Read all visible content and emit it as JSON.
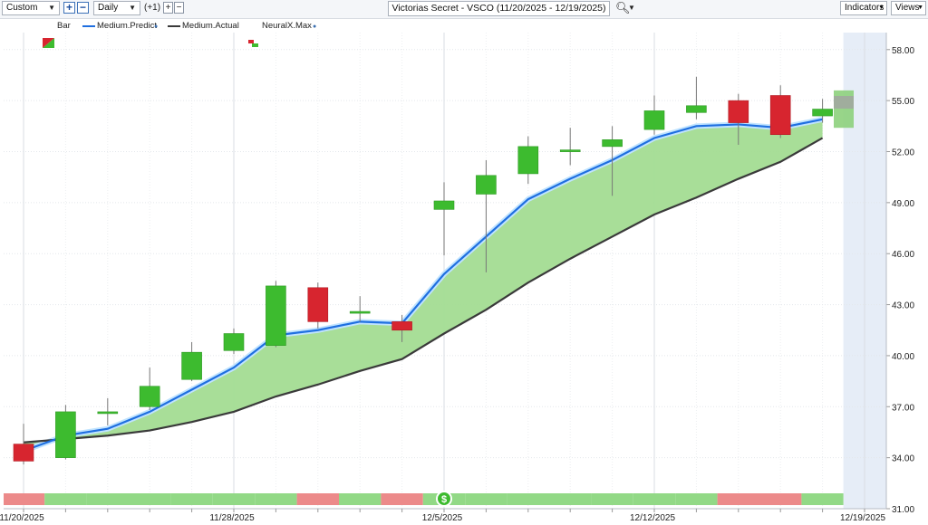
{
  "toolbar": {
    "period_select": "Custom",
    "zoom_in_icon": "plus-icon",
    "zoom_out_icon": "minus-icon",
    "interval_select": "Daily",
    "offset_label": "(+1)",
    "title": "Victorias Secret - VSCO (11/20/2025 - 12/19/2025)",
    "search_icon": "magnifier-icon",
    "indicators_label": "Indicators",
    "views_label": "Views"
  },
  "legend": [
    {
      "name": "Bar",
      "icon": "bar-icon"
    },
    {
      "name": "Medium.Predict",
      "color": "#1f6fe0"
    },
    {
      "name": "Medium.Actual",
      "color": "#3a3a3a"
    },
    {
      "name": "NeuralX.Max",
      "icon": "neuralx-icon"
    }
  ],
  "colors": {
    "up": "#3dbb2f",
    "down": "#d7252f",
    "fill": "#a3dc92",
    "predict": "#1f6fe0",
    "actual": "#3a3a3a",
    "strip_up": "#92d986",
    "strip_down": "#ec8a8a",
    "forecast_bg": "#e6edf7"
  },
  "chart_data": {
    "type": "candlestick",
    "title": "Victorias Secret - VSCO (11/20/2025 - 12/19/2025)",
    "ylim": [
      31,
      59
    ],
    "y_ticks": [
      "58.00",
      "55.00",
      "52.00",
      "49.00",
      "46.00",
      "43.00",
      "40.00",
      "37.00",
      "34.00",
      "31.00"
    ],
    "x_tick_labels": [
      {
        "label": "11/20/2025",
        "index": 0
      },
      {
        "label": "11/28/2025",
        "index": 5
      },
      {
        "label": "12/5/2025",
        "index": 10
      },
      {
        "label": "12/12/2025",
        "index": 15
      },
      {
        "label": "12/19/2025",
        "index": 20
      }
    ],
    "dates": [
      "11/20/2025",
      "11/21/2025",
      "11/24/2025",
      "11/25/2025",
      "11/26/2025",
      "11/28/2025",
      "12/1/2025",
      "12/2/2025",
      "12/3/2025",
      "12/4/2025",
      "12/5/2025",
      "12/8/2025",
      "12/9/2025",
      "12/10/2025",
      "12/11/2025",
      "12/12/2025",
      "12/15/2025",
      "12/16/2025",
      "12/17/2025",
      "12/18/2025"
    ],
    "ohlc": [
      [
        34.8,
        36.0,
        33.6,
        33.8
      ],
      [
        34.0,
        37.1,
        33.9,
        36.7
      ],
      [
        36.7,
        37.5,
        35.9,
        36.7
      ],
      [
        37.0,
        39.3,
        36.8,
        38.2
      ],
      [
        38.6,
        40.8,
        38.5,
        40.2
      ],
      [
        40.3,
        41.6,
        40.1,
        41.3
      ],
      [
        40.6,
        44.4,
        40.5,
        44.1
      ],
      [
        44.0,
        44.3,
        41.6,
        42.0
      ],
      [
        42.6,
        43.5,
        42.0,
        42.6
      ],
      [
        42.0,
        42.4,
        40.8,
        41.5
      ],
      [
        48.6,
        50.2,
        45.9,
        49.1
      ],
      [
        49.5,
        51.5,
        44.9,
        50.6
      ],
      [
        50.7,
        52.9,
        50.1,
        52.3
      ],
      [
        52.1,
        53.4,
        51.2,
        52.1
      ],
      [
        52.3,
        53.5,
        49.4,
        52.7
      ],
      [
        53.3,
        55.3,
        53.0,
        54.4
      ],
      [
        54.3,
        56.4,
        53.9,
        54.7
      ],
      [
        55.0,
        55.4,
        52.4,
        53.7
      ],
      [
        55.3,
        55.9,
        52.8,
        53.0
      ],
      [
        54.1,
        55.1,
        53.7,
        54.5
      ]
    ],
    "series": [
      {
        "name": "Medium.Predict",
        "values": [
          34.4,
          35.3,
          35.7,
          36.7,
          38.0,
          39.3,
          41.2,
          41.5,
          42.0,
          41.9,
          44.8,
          47.0,
          49.2,
          50.4,
          51.5,
          52.8,
          53.5,
          53.6,
          53.4,
          53.9
        ]
      },
      {
        "name": "Medium.Actual",
        "values": [
          34.9,
          35.1,
          35.3,
          35.6,
          36.1,
          36.7,
          37.6,
          38.3,
          39.1,
          39.8,
          41.3,
          42.7,
          44.3,
          45.7,
          47.0,
          48.3,
          49.3,
          50.4,
          51.4,
          52.8
        ]
      }
    ],
    "forecast": {
      "open": 54.3,
      "high": 55.7,
      "low": 53.4,
      "close": 55.6
    },
    "neuralx_strip": [
      "down",
      "up",
      "up",
      "up",
      "up",
      "up",
      "up",
      "down",
      "up",
      "down",
      "up",
      "up",
      "up",
      "up",
      "up",
      "up",
      "up",
      "down",
      "down",
      "up"
    ],
    "marker_label": "$",
    "marker_index": 10
  }
}
